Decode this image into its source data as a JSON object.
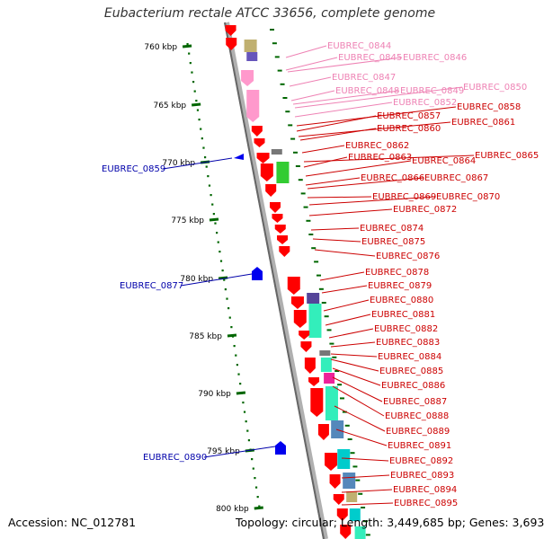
{
  "title": "Eubacterium rectale ATCC 33656, complete genome",
  "footer": {
    "accession": "Accession: NC_012781",
    "summary": "Topology: circular; Length: 3,449,685 bp; Genes: 3,693"
  },
  "colors": {
    "forward": "#ff0000",
    "reverse_marker": "#0000ee",
    "pink": "#ff99cc",
    "axis_tick": "#006600",
    "label_red": "#cc0000",
    "label_pink": "#ee82b4",
    "label_blue": "#0000aa"
  },
  "scale": {
    "ticks": [
      "760 kbp",
      "765 kbp",
      "770 kbp",
      "775 kbp",
      "780 kbp",
      "785 kbp",
      "790 kbp",
      "795 kbp",
      "800 kbp"
    ]
  },
  "genes_right": [
    {
      "label": "EUBREC_0844",
      "color": "pink"
    },
    {
      "label": "EUBREC_0845",
      "color": "pink"
    },
    {
      "label": "EUBREC_0846",
      "color": "pink"
    },
    {
      "label": "EUBREC_0847",
      "color": "pink"
    },
    {
      "label": "EUBREC_0848",
      "color": "pink"
    },
    {
      "label": "EUBREC_0849",
      "color": "pink"
    },
    {
      "label": "EUBREC_0850",
      "color": "pink"
    },
    {
      "label": "EUBREC_0852",
      "color": "pink"
    },
    {
      "label": "EUBREC_0858",
      "color": "red"
    },
    {
      "label": "EUBREC_0857",
      "color": "red"
    },
    {
      "label": "EUBREC_0861",
      "color": "red"
    },
    {
      "label": "EUBREC_0860",
      "color": "red"
    },
    {
      "label": "EUBREC_0862",
      "color": "red"
    },
    {
      "label": "EUBREC_0865",
      "color": "red"
    },
    {
      "label": "EUBREC_0863",
      "color": "red"
    },
    {
      "label": "EUBREC_0864",
      "color": "red"
    },
    {
      "label": "EUBREC_0866",
      "color": "red"
    },
    {
      "label": "EUBREC_0867",
      "color": "red"
    },
    {
      "label": "EUBREC_0869",
      "color": "red"
    },
    {
      "label": "EUBREC_0870",
      "color": "red"
    },
    {
      "label": "EUBREC_0872",
      "color": "red"
    },
    {
      "label": "EUBREC_0874",
      "color": "red"
    },
    {
      "label": "EUBREC_0875",
      "color": "red"
    },
    {
      "label": "EUBREC_0876",
      "color": "red"
    },
    {
      "label": "EUBREC_0878",
      "color": "red"
    },
    {
      "label": "EUBREC_0879",
      "color": "red"
    },
    {
      "label": "EUBREC_0880",
      "color": "red"
    },
    {
      "label": "EUBREC_0881",
      "color": "red"
    },
    {
      "label": "EUBREC_0882",
      "color": "red"
    },
    {
      "label": "EUBREC_0883",
      "color": "red"
    },
    {
      "label": "EUBREC_0884",
      "color": "red"
    },
    {
      "label": "EUBREC_0885",
      "color": "red"
    },
    {
      "label": "EUBREC_0886",
      "color": "red"
    },
    {
      "label": "EUBREC_0887",
      "color": "red"
    },
    {
      "label": "EUBREC_0888",
      "color": "red"
    },
    {
      "label": "EUBREC_0889",
      "color": "red"
    },
    {
      "label": "EUBREC_0891",
      "color": "red"
    },
    {
      "label": "EUBREC_0892",
      "color": "red"
    },
    {
      "label": "EUBREC_0893",
      "color": "red"
    },
    {
      "label": "EUBREC_0894",
      "color": "red"
    },
    {
      "label": "EUBREC_0895",
      "color": "red"
    }
  ],
  "genes_left": [
    {
      "label": "EUBREC_0859"
    },
    {
      "label": "EUBREC_0877"
    },
    {
      "label": "EUBREC_0890"
    }
  ]
}
